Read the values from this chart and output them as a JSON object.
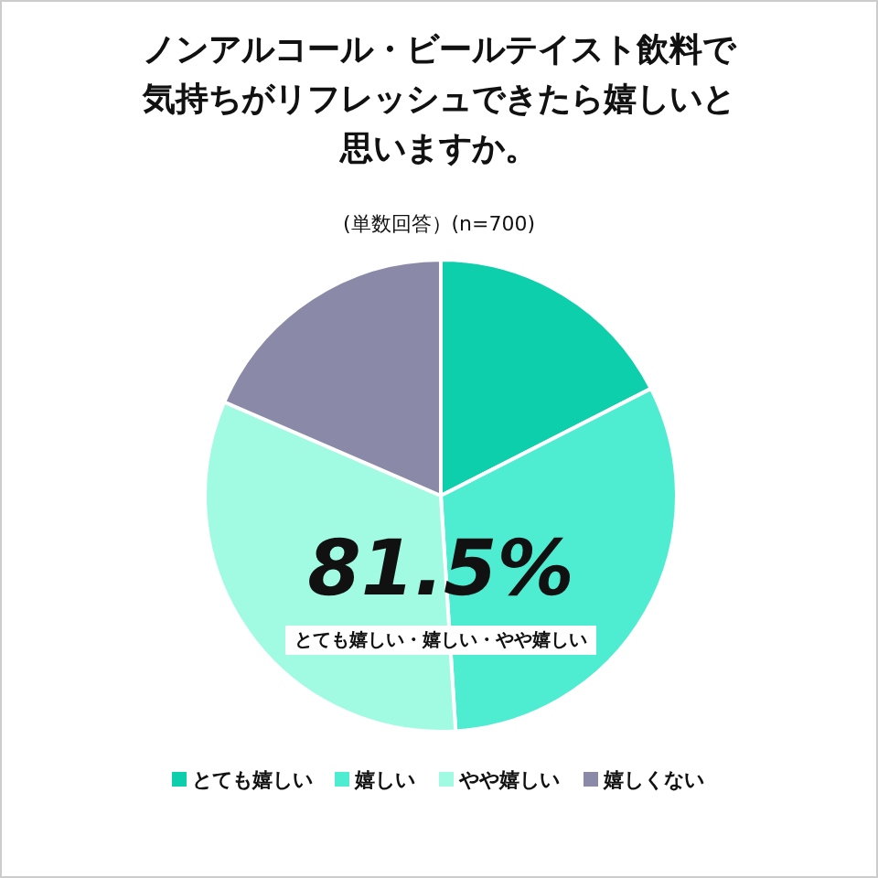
{
  "chart_data": {
    "type": "pie",
    "title": "ノンアルコール・ビールテイスト飲料で気持ちがリフレッシュできたら嬉しいと思いますか。",
    "subtitle": "(単数回答）(n=700)",
    "categories": [
      "とても嬉しい",
      "嬉しい",
      "やや嬉しい",
      "嬉しくない"
    ],
    "values": [
      17.5,
      31.5,
      32.5,
      18.5
    ],
    "colors": [
      "#0ecfac",
      "#4eedd2",
      "#a0fbe2",
      "#8a8aa8"
    ],
    "annotations": [
      "81.5%",
      "とても嬉しい・嬉しい・やや嬉しい"
    ],
    "legend": "bottom"
  }
}
